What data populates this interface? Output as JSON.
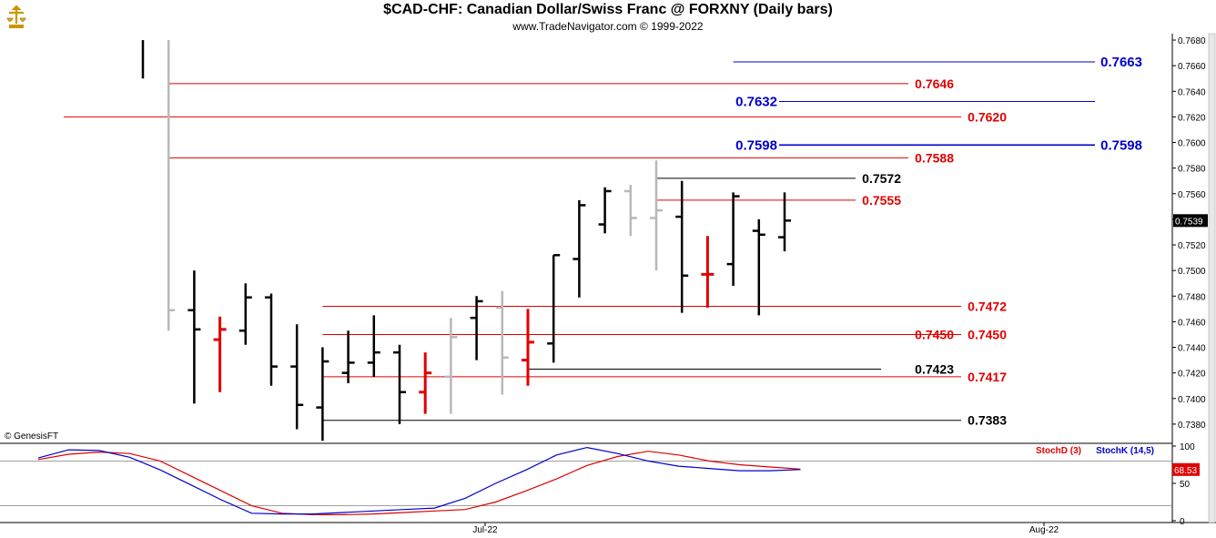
{
  "header": {
    "title": "$CAD-CHF:  Canadian Dollar/Swiss Franc @ FORXNY  (Daily bars)",
    "subtitle": "www.TradeNavigator.com © 1999-2022",
    "copyright": "© GenesisFT"
  },
  "colors": {
    "up": "#000000",
    "down": "#e00000",
    "inside": "#b8b8b8",
    "red_line": "#e00000",
    "blue_line": "#0000cc",
    "black_line": "#000000"
  },
  "chart_data": [
    {
      "type": "ohlc",
      "title": "$CAD-CHF:  Canadian Dollar/Swiss Franc @ FORXNY  (Daily bars)",
      "ylim": [
        0.7365,
        0.7685
      ],
      "y_ticks": [
        "0.7680",
        "0.7660",
        "0.7640",
        "0.7620",
        "0.7600",
        "0.7580",
        "0.7560",
        "0.7540",
        "0.7520",
        "0.7500",
        "0.7480",
        "0.7460",
        "0.7440",
        "0.7420",
        "0.7400",
        "0.7380"
      ],
      "last_price": "0.7539",
      "x_tick_labels": [
        {
          "label": "Jul-22",
          "bar": 17
        },
        {
          "label": "Aug-22",
          "bar": 37
        }
      ],
      "bars": [
        {
          "o": null,
          "h": 0.768,
          "l": 0.765,
          "c": null,
          "color": "up"
        },
        {
          "o": null,
          "h": 0.768,
          "l": 0.7453,
          "c": 0.7469,
          "color": "inside"
        },
        {
          "o": 0.7469,
          "h": 0.75,
          "l": 0.7396,
          "c": 0.7454,
          "color": "up"
        },
        {
          "o": 0.7446,
          "h": 0.7464,
          "l": 0.7405,
          "c": 0.7454,
          "color": "down"
        },
        {
          "o": 0.7453,
          "h": 0.749,
          "l": 0.7442,
          "c": 0.7479,
          "color": "up"
        },
        {
          "o": 0.7479,
          "h": 0.7482,
          "l": 0.741,
          "c": 0.7425,
          "color": "up"
        },
        {
          "o": 0.7425,
          "h": 0.7458,
          "l": 0.7376,
          "c": 0.7395,
          "color": "up"
        },
        {
          "o": 0.7393,
          "h": 0.744,
          "l": 0.7367,
          "c": 0.7429,
          "color": "up"
        },
        {
          "o": 0.742,
          "h": 0.7453,
          "l": 0.7412,
          "c": 0.7428,
          "color": "up"
        },
        {
          "o": 0.7428,
          "h": 0.7465,
          "l": 0.7417,
          "c": 0.7436,
          "color": "up"
        },
        {
          "o": 0.7436,
          "h": 0.7442,
          "l": 0.738,
          "c": 0.7405,
          "color": "up"
        },
        {
          "o": 0.7405,
          "h": 0.7436,
          "l": 0.7388,
          "c": 0.742,
          "color": "down"
        },
        {
          "o": 0.7417,
          "h": 0.7463,
          "l": 0.7388,
          "c": 0.7448,
          "color": "inside"
        },
        {
          "o": 0.7463,
          "h": 0.748,
          "l": 0.743,
          "c": 0.7476,
          "color": "up"
        },
        {
          "o": 0.7471,
          "h": 0.7484,
          "l": 0.7403,
          "c": 0.7432,
          "color": "inside"
        },
        {
          "o": 0.743,
          "h": 0.747,
          "l": 0.741,
          "c": 0.7444,
          "color": "down"
        },
        {
          "o": 0.7443,
          "h": 0.7512,
          "l": 0.7428,
          "c": 0.7512,
          "color": "up"
        },
        {
          "o": 0.7509,
          "h": 0.7555,
          "l": 0.7479,
          "c": 0.7551,
          "color": "up"
        },
        {
          "o": 0.7536,
          "h": 0.7565,
          "l": 0.7529,
          "c": 0.7562,
          "color": "up"
        },
        {
          "o": 0.7562,
          "h": 0.7567,
          "l": 0.7527,
          "c": 0.7541,
          "color": "inside"
        },
        {
          "o": 0.7541,
          "h": 0.7586,
          "l": 0.75,
          "c": 0.7547,
          "color": "inside"
        },
        {
          "o": 0.7542,
          "h": 0.757,
          "l": 0.7467,
          "c": 0.7496,
          "color": "up"
        },
        {
          "o": 0.7497,
          "h": 0.7527,
          "l": 0.7471,
          "c": 0.7497,
          "color": "down"
        },
        {
          "o": 0.7505,
          "h": 0.7561,
          "l": 0.7488,
          "c": 0.7558,
          "color": "up"
        },
        {
          "o": 0.7531,
          "h": 0.754,
          "l": 0.7465,
          "c": 0.7528,
          "color": "up"
        },
        {
          "o": 0.7526,
          "h": 0.7561,
          "l": 0.7515,
          "c": 0.7539,
          "color": "up"
        }
      ],
      "levels": [
        {
          "value": 0.7663,
          "label": "0.7663",
          "color": "blue",
          "from_bar": 23,
          "label_pos": "right"
        },
        {
          "value": 0.7646,
          "label": "0.7646",
          "color": "red",
          "from_bar": 1,
          "label_pos": "mid"
        },
        {
          "value": 0.7632,
          "label": "0.7632",
          "color": "blue",
          "from_bar": 23,
          "label_pos": "left"
        },
        {
          "value": 0.762,
          "label": "0.7620",
          "color": "red",
          "from_bar": -3,
          "label_pos": "far"
        },
        {
          "value": 0.7598,
          "label": "0.7598",
          "color": "blue",
          "from_bar": 23,
          "label_pos": "both"
        },
        {
          "value": 0.7588,
          "label": "0.7588",
          "color": "red",
          "from_bar": 1,
          "label_pos": "mid"
        },
        {
          "value": 0.7572,
          "label": "0.7572",
          "color": "black",
          "from_bar": 20,
          "label_pos": "near"
        },
        {
          "value": 0.7555,
          "label": "0.7555",
          "color": "red",
          "from_bar": 20,
          "label_pos": "near"
        },
        {
          "value": 0.7472,
          "label": "0.7472",
          "color": "red",
          "from_bar": 7,
          "label_pos": "far"
        },
        {
          "value": 0.745,
          "label": "0.7450",
          "color": "red",
          "from_bar": 7,
          "label_pos": "far"
        },
        {
          "value": 0.745,
          "label": "0.7450",
          "color": "red",
          "from_bar": 15,
          "label_pos": "mid"
        },
        {
          "value": 0.7423,
          "label": "0.7423",
          "color": "black",
          "from_bar": 15,
          "label_pos": "mid"
        },
        {
          "value": 0.7417,
          "label": "0.7417",
          "color": "red",
          "from_bar": 7,
          "label_pos": "far"
        },
        {
          "value": 0.7383,
          "label": "0.7383",
          "color": "black",
          "from_bar": 7,
          "label_pos": "far"
        }
      ]
    },
    {
      "type": "line",
      "title": "Stochastic",
      "ylim": [
        0,
        100
      ],
      "y_ticks": [
        "100",
        "50",
        "0"
      ],
      "reference_lines": [
        80,
        20
      ],
      "last_value": "68.53",
      "series": [
        {
          "name": "StochD (3)",
          "color": "#e00000",
          "values": [
            82,
            89,
            92,
            90,
            80,
            60,
            40,
            20,
            10,
            8,
            8,
            9,
            11,
            13,
            15,
            25,
            40,
            56,
            74,
            86,
            93,
            88,
            80,
            75,
            72,
            69
          ]
        },
        {
          "name": "StochK (14,5)",
          "color": "#0000cc",
          "values": [
            84,
            95,
            94,
            85,
            68,
            48,
            28,
            10,
            9,
            9,
            11,
            13,
            15,
            17,
            30,
            50,
            68,
            88,
            98,
            90,
            80,
            73,
            70,
            67,
            67,
            68.53
          ]
        }
      ]
    }
  ]
}
